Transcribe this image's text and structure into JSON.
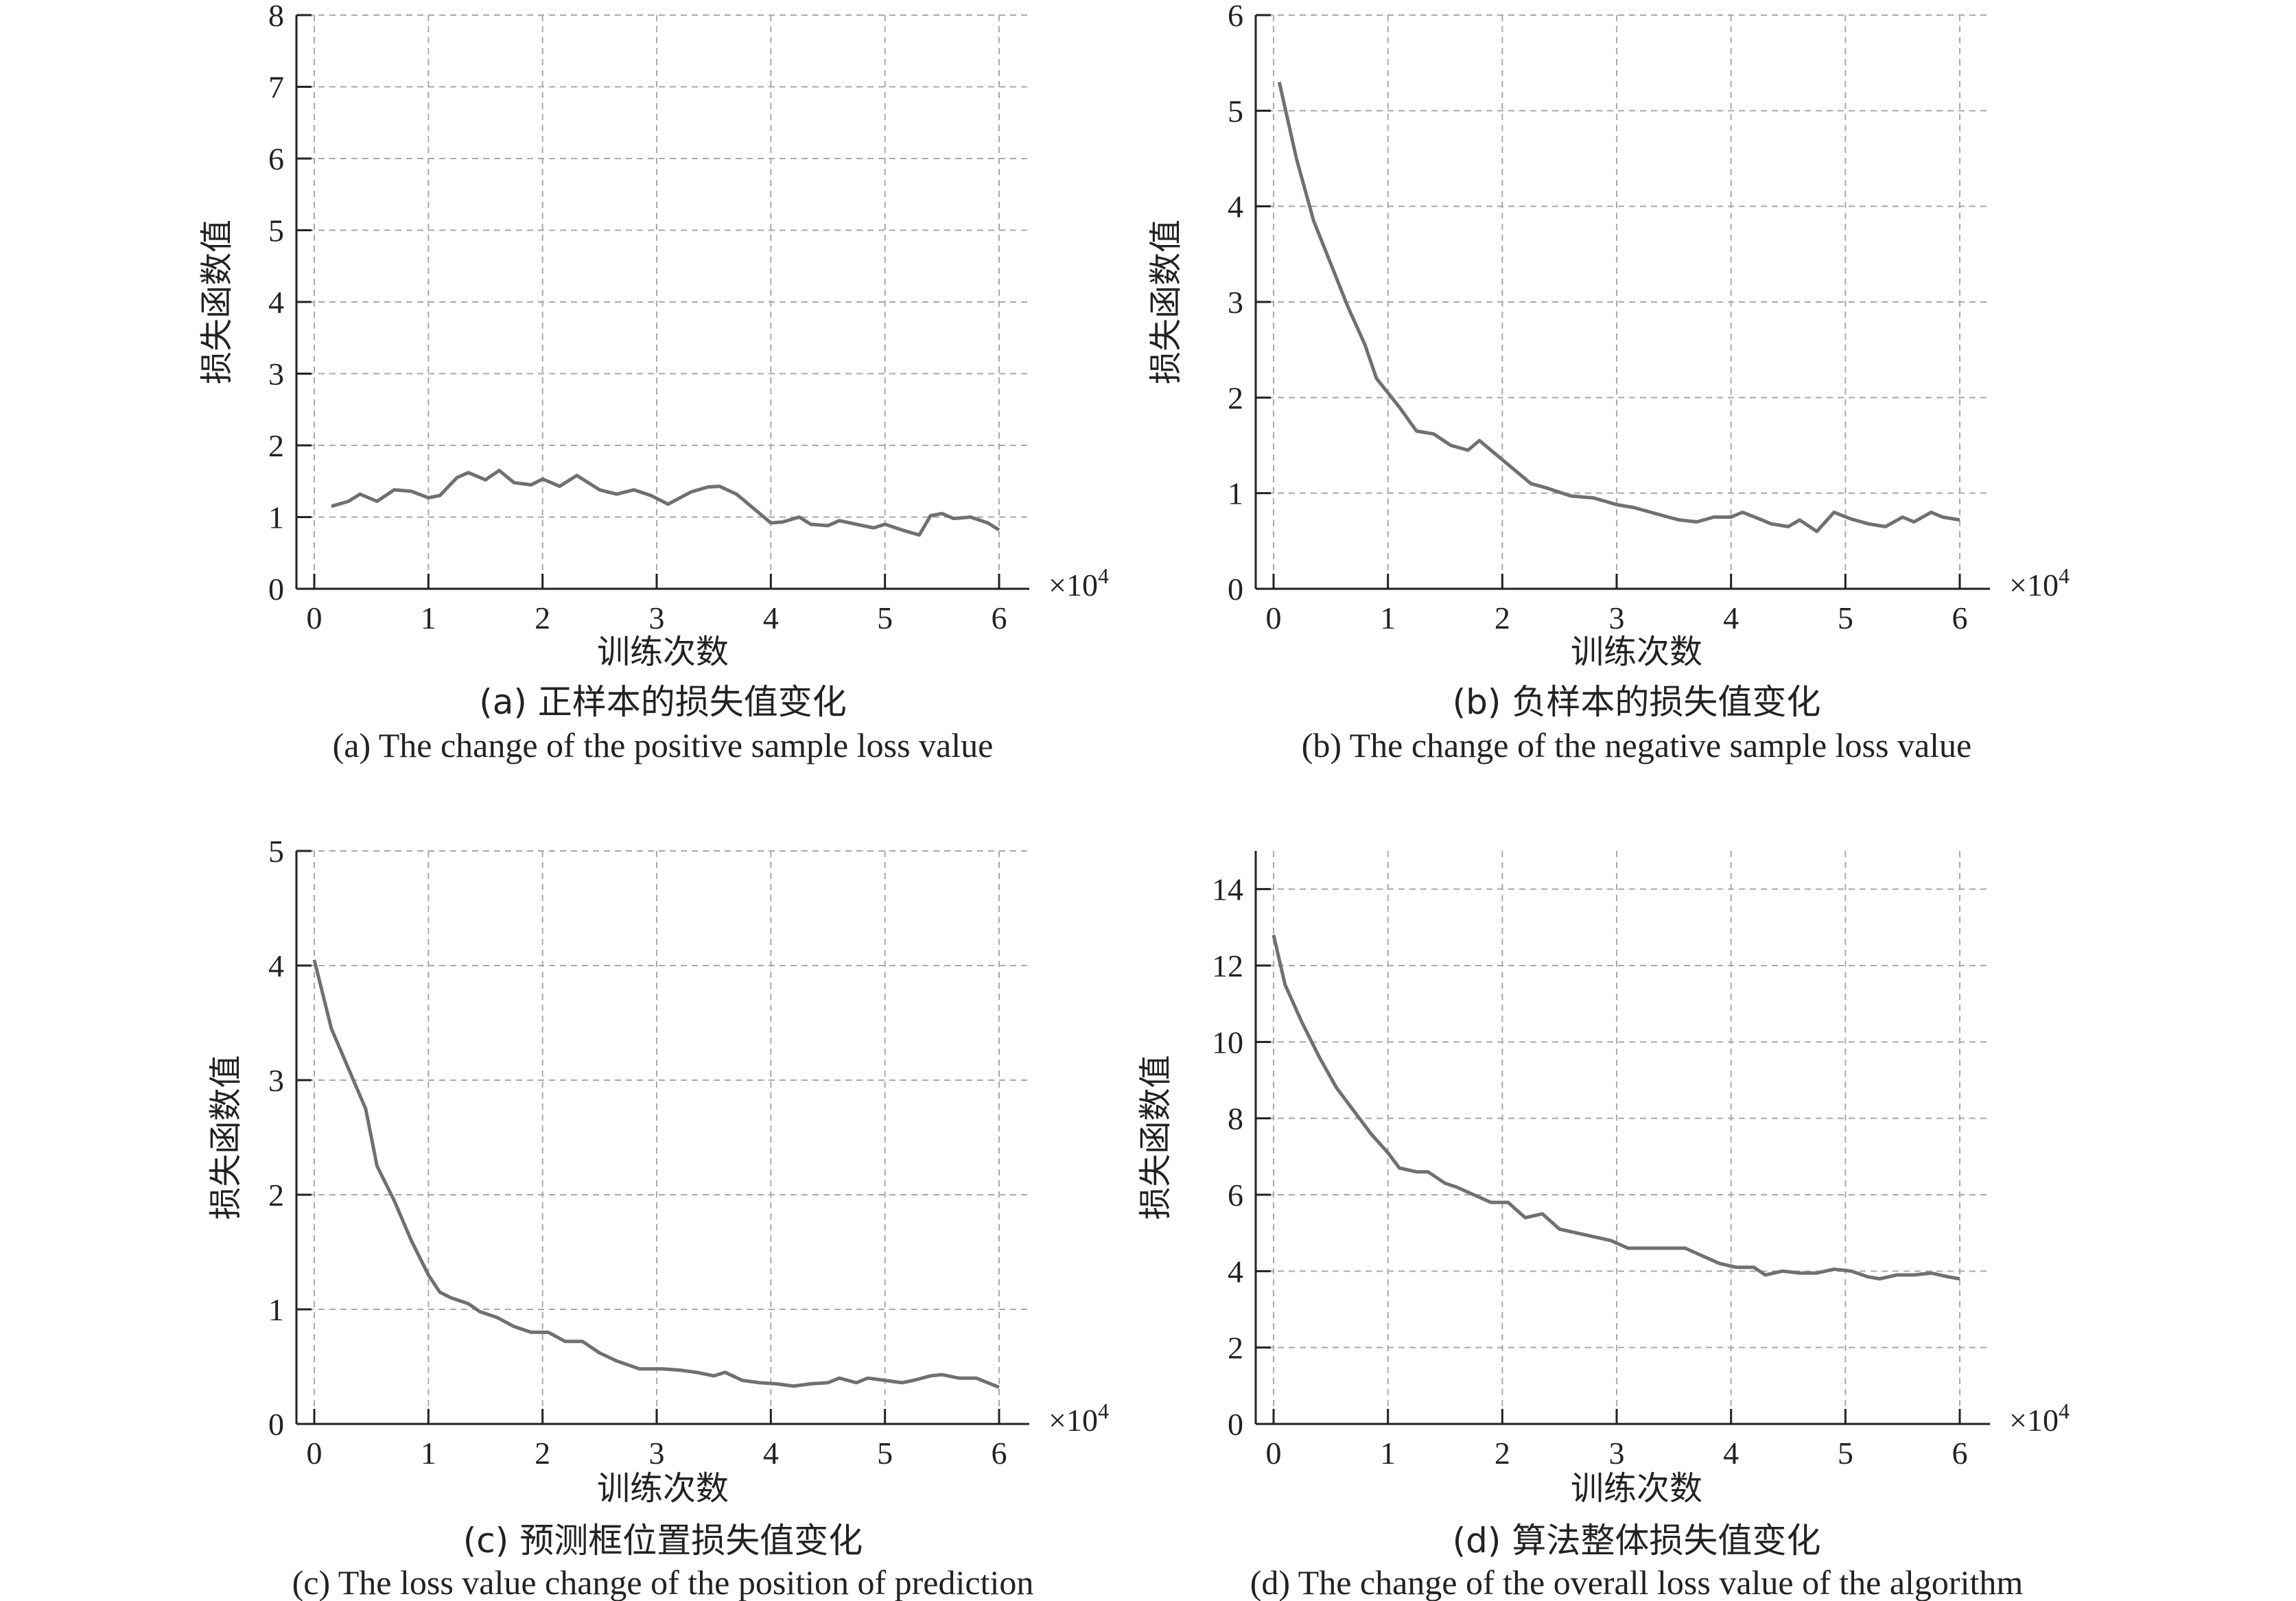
{
  "chart_data": [
    {
      "type": "line",
      "panel": "a",
      "caption_zh": "(a) 正样本的损失值变化",
      "caption_en": "(a) The change of the positive sample loss value",
      "xlabel": "训练次数",
      "ylabel": "损失函数值",
      "x_multiplier": "×10",
      "x_multiplier_exp": "4",
      "xlim": [
        0,
        6
      ],
      "ylim": [
        0,
        8
      ],
      "xticks": [
        "0",
        "1",
        "2",
        "3",
        "4",
        "5",
        "6"
      ],
      "yticks": [
        "0",
        "1",
        "2",
        "3",
        "4",
        "5",
        "6",
        "7",
        "8"
      ],
      "grid": true,
      "x": [
        0.15,
        0.3,
        0.4,
        0.55,
        0.7,
        0.85,
        1.0,
        1.1,
        1.25,
        1.35,
        1.5,
        1.62,
        1.75,
        1.9,
        2.0,
        2.15,
        2.3,
        2.5,
        2.65,
        2.8,
        2.95,
        3.1,
        3.3,
        3.45,
        3.55,
        3.7,
        3.85,
        4.0,
        4.1,
        4.25,
        4.35,
        4.5,
        4.6,
        4.75,
        4.9,
        5.0,
        5.15,
        5.3,
        5.4,
        5.5,
        5.6,
        5.75,
        5.9,
        6.0
      ],
      "values": [
        1.15,
        1.22,
        1.32,
        1.22,
        1.38,
        1.36,
        1.27,
        1.3,
        1.55,
        1.62,
        1.52,
        1.65,
        1.48,
        1.45,
        1.53,
        1.43,
        1.58,
        1.38,
        1.32,
        1.38,
        1.3,
        1.18,
        1.35,
        1.42,
        1.43,
        1.32,
        1.12,
        0.92,
        0.93,
        1.0,
        0.9,
        0.88,
        0.95,
        0.9,
        0.85,
        0.9,
        0.82,
        0.75,
        1.02,
        1.05,
        0.98,
        1.0,
        0.92,
        0.82
      ]
    },
    {
      "type": "line",
      "panel": "b",
      "caption_zh": "(b) 负样本的损失值变化",
      "caption_en": "(b) The change of the negative sample loss value",
      "xlabel": "训练次数",
      "ylabel": "损失函数值",
      "x_multiplier": "×10",
      "x_multiplier_exp": "4",
      "xlim": [
        0,
        6
      ],
      "ylim": [
        0,
        6
      ],
      "xticks": [
        "0",
        "1",
        "2",
        "3",
        "4",
        "5",
        "6"
      ],
      "yticks": [
        "0",
        "1",
        "2",
        "3",
        "4",
        "5",
        "6"
      ],
      "grid": true,
      "x": [
        0.05,
        0.2,
        0.35,
        0.5,
        0.65,
        0.8,
        0.9,
        1.0,
        1.1,
        1.25,
        1.4,
        1.55,
        1.7,
        1.8,
        1.95,
        2.1,
        2.25,
        2.4,
        2.6,
        2.8,
        3.0,
        3.15,
        3.3,
        3.45,
        3.55,
        3.7,
        3.85,
        4.0,
        4.1,
        4.25,
        4.35,
        4.5,
        4.6,
        4.75,
        4.9,
        5.05,
        5.2,
        5.35,
        5.5,
        5.6,
        5.75,
        5.85,
        6.0
      ],
      "values": [
        5.3,
        4.5,
        3.85,
        3.4,
        2.95,
        2.55,
        2.2,
        2.05,
        1.9,
        1.65,
        1.62,
        1.5,
        1.45,
        1.55,
        1.4,
        1.25,
        1.1,
        1.05,
        0.97,
        0.95,
        0.88,
        0.85,
        0.8,
        0.75,
        0.72,
        0.7,
        0.75,
        0.75,
        0.8,
        0.73,
        0.68,
        0.65,
        0.72,
        0.6,
        0.8,
        0.73,
        0.68,
        0.65,
        0.75,
        0.7,
        0.8,
        0.75,
        0.72
      ]
    },
    {
      "type": "line",
      "panel": "c",
      "caption_zh": "(c) 预测框位置损失值变化",
      "caption_en": "(c) The loss value change of the position of prediction",
      "xlabel": "训练次数",
      "ylabel": "损失函数值",
      "x_multiplier": "×10",
      "x_multiplier_exp": "4",
      "xlim": [
        0,
        6
      ],
      "ylim": [
        0,
        5
      ],
      "xticks": [
        "0",
        "1",
        "2",
        "3",
        "4",
        "5",
        "6"
      ],
      "yticks": [
        "0",
        "1",
        "2",
        "3",
        "4",
        "5"
      ],
      "grid": true,
      "x": [
        0.0,
        0.15,
        0.3,
        0.45,
        0.55,
        0.7,
        0.85,
        1.0,
        1.1,
        1.2,
        1.35,
        1.45,
        1.6,
        1.75,
        1.9,
        2.05,
        2.2,
        2.35,
        2.5,
        2.65,
        2.85,
        3.05,
        3.2,
        3.35,
        3.5,
        3.6,
        3.75,
        3.9,
        4.05,
        4.2,
        4.35,
        4.5,
        4.6,
        4.75,
        4.85,
        5.0,
        5.15,
        5.25,
        5.4,
        5.5,
        5.65,
        5.8,
        6.0
      ],
      "values": [
        4.05,
        3.45,
        3.1,
        2.75,
        2.25,
        1.95,
        1.6,
        1.3,
        1.15,
        1.1,
        1.05,
        0.98,
        0.93,
        0.85,
        0.8,
        0.8,
        0.72,
        0.72,
        0.62,
        0.55,
        0.48,
        0.48,
        0.47,
        0.45,
        0.42,
        0.45,
        0.38,
        0.36,
        0.35,
        0.33,
        0.35,
        0.36,
        0.4,
        0.36,
        0.4,
        0.38,
        0.36,
        0.38,
        0.42,
        0.43,
        0.4,
        0.4,
        0.32
      ]
    },
    {
      "type": "line",
      "panel": "d",
      "caption_zh": "(d) 算法整体损失值变化",
      "caption_en": "(d) The change of the overall loss value of the algorithm",
      "xlabel": "训练次数",
      "ylabel": "损失函数值",
      "x_multiplier": "×10",
      "x_multiplier_exp": "4",
      "xlim": [
        0,
        6
      ],
      "ylim": [
        0,
        15
      ],
      "xticks": [
        "0",
        "1",
        "2",
        "3",
        "4",
        "5",
        "6"
      ],
      "yticks": [
        "0",
        "2",
        "4",
        "6",
        "8",
        "10",
        "12",
        "14"
      ],
      "ytick_values": [
        0,
        2,
        4,
        6,
        8,
        10,
        12,
        14
      ],
      "grid": true,
      "x": [
        0.0,
        0.1,
        0.25,
        0.4,
        0.55,
        0.7,
        0.85,
        1.0,
        1.1,
        1.25,
        1.35,
        1.5,
        1.6,
        1.75,
        1.9,
        2.05,
        2.2,
        2.35,
        2.5,
        2.65,
        2.8,
        2.95,
        3.1,
        3.3,
        3.45,
        3.6,
        3.75,
        3.9,
        4.05,
        4.2,
        4.3,
        4.45,
        4.6,
        4.75,
        4.9,
        5.05,
        5.2,
        5.3,
        5.45,
        5.6,
        5.75,
        5.9,
        6.0
      ],
      "values": [
        12.8,
        11.5,
        10.5,
        9.6,
        8.8,
        8.2,
        7.6,
        7.1,
        6.7,
        6.6,
        6.6,
        6.3,
        6.2,
        6.0,
        5.8,
        5.8,
        5.4,
        5.5,
        5.1,
        5.0,
        4.9,
        4.8,
        4.6,
        4.6,
        4.6,
        4.6,
        4.4,
        4.2,
        4.1,
        4.1,
        3.9,
        4.0,
        3.95,
        3.95,
        4.05,
        4.0,
        3.85,
        3.8,
        3.9,
        3.9,
        3.95,
        3.85,
        3.8
      ]
    }
  ]
}
